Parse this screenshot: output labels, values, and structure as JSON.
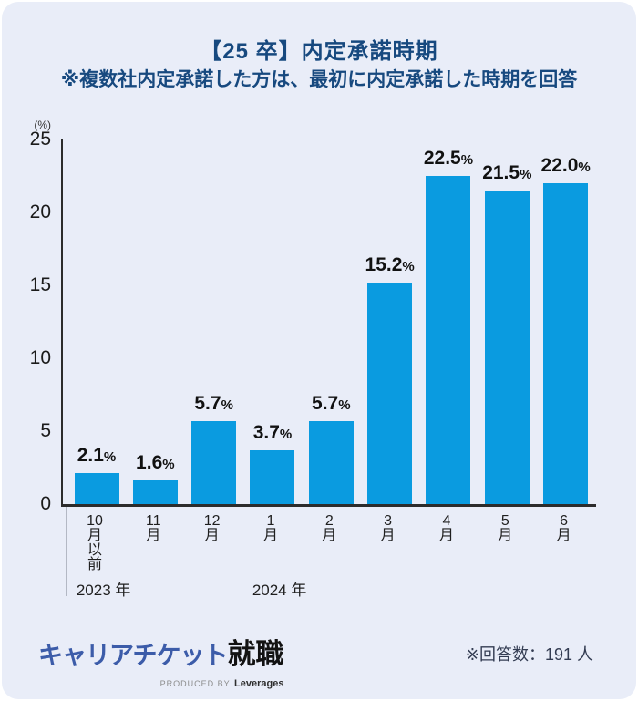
{
  "header": {
    "title": "【25 卒】内定承諾時期",
    "subtitle": "※複数社内定承諾した方は、最初に内定承諾した時期を回答"
  },
  "chart_data": {
    "type": "bar",
    "title": "【25 卒】内定承諾時期",
    "unit_label": "(%)",
    "ylim": [
      0,
      25
    ],
    "yticks": [
      0,
      5,
      10,
      15,
      20,
      25
    ],
    "grid": false,
    "legend": "none",
    "bar_color": "#0a9be0",
    "categories": [
      "10月以前",
      "11月",
      "12月",
      "1月",
      "2月",
      "3月",
      "4月",
      "5月",
      "6月"
    ],
    "category_lines": [
      [
        "10",
        "月",
        "以",
        "前"
      ],
      [
        "11",
        "月"
      ],
      [
        "12",
        "月"
      ],
      [
        "1",
        "月"
      ],
      [
        "2",
        "月"
      ],
      [
        "3",
        "月"
      ],
      [
        "4",
        "月"
      ],
      [
        "5",
        "月"
      ],
      [
        "6",
        "月"
      ]
    ],
    "values": [
      2.1,
      1.6,
      5.7,
      3.7,
      5.7,
      15.2,
      22.5,
      21.5,
      22.0
    ],
    "value_labels": [
      "2.1%",
      "1.6%",
      "5.7%",
      "3.7%",
      "5.7%",
      "15.2%",
      "22.5%",
      "21.5%",
      "22.0%"
    ],
    "year_groups": [
      {
        "label": "2023 年",
        "start_index": 0
      },
      {
        "label": "2024 年",
        "start_index": 3
      }
    ]
  },
  "footer": {
    "logo_blue": "キャリアチケット",
    "logo_black": "就職",
    "produced_by": "PRODUCED BY",
    "produced_brand": "Leverages",
    "respondents": "※回答数：191 人"
  },
  "colors": {
    "card_background": "#e9edf8",
    "title_text": "#17497f",
    "bar": "#0a9be0",
    "axis": "#2c2c2c",
    "logo_blue": "#3c5ca9",
    "logo_black": "#121212"
  }
}
